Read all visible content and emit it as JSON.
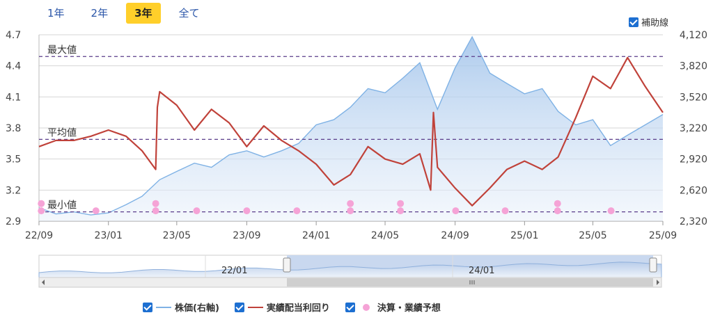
{
  "tabs": [
    {
      "label": "1年",
      "active": false
    },
    {
      "label": "2年",
      "active": false
    },
    {
      "label": "3年",
      "active": true
    },
    {
      "label": "全て",
      "active": false
    }
  ],
  "guide_toggle_label": "補助線",
  "navigator_labels": [
    "22/01",
    "24/01"
  ],
  "colors": {
    "price": "#7fb2e5",
    "yield": "#c0423a",
    "event": "#f5a3d6",
    "guide": "#5a3c8a"
  },
  "chart_data": {
    "type": "line",
    "x_ticks": [
      "22/09",
      "23/01",
      "23/05",
      "23/09",
      "24/01",
      "24/05",
      "24/09",
      "25/01",
      "25/05",
      "25/09"
    ],
    "y_left": {
      "ticks": [
        "2.9",
        "3.2",
        "3.5",
        "3.8",
        "4.1",
        "4.4",
        "4.7"
      ],
      "range": [
        2.9,
        4.7
      ]
    },
    "y_right": {
      "ticks": [
        "2,320",
        "2,620",
        "2,920",
        "3,220",
        "3,520",
        "3,820",
        "4,120"
      ],
      "range": [
        2320,
        4120
      ]
    },
    "guides": [
      {
        "label": "最大値",
        "value": 4.49
      },
      {
        "label": "平均値",
        "value": 3.69
      },
      {
        "label": "最小値",
        "value": 2.99
      }
    ],
    "series": [
      {
        "name": "株価(右軸)",
        "axis": "right",
        "points": [
          [
            "2022-09-01",
            2450
          ],
          [
            "2022-10-01",
            2390
          ],
          [
            "2022-11-01",
            2410
          ],
          [
            "2022-12-01",
            2380
          ],
          [
            "2023-01-01",
            2400
          ],
          [
            "2023-02-01",
            2480
          ],
          [
            "2023-03-01",
            2560
          ],
          [
            "2023-04-01",
            2720
          ],
          [
            "2023-05-01",
            2800
          ],
          [
            "2023-06-01",
            2880
          ],
          [
            "2023-07-01",
            2840
          ],
          [
            "2023-08-01",
            2960
          ],
          [
            "2023-09-01",
            3000
          ],
          [
            "2023-10-01",
            2940
          ],
          [
            "2023-11-01",
            3000
          ],
          [
            "2023-12-01",
            3070
          ],
          [
            "2024-01-01",
            3250
          ],
          [
            "2024-02-01",
            3300
          ],
          [
            "2024-03-01",
            3420
          ],
          [
            "2024-04-01",
            3600
          ],
          [
            "2024-05-01",
            3560
          ],
          [
            "2024-06-01",
            3700
          ],
          [
            "2024-07-01",
            3850
          ],
          [
            "2024-08-01",
            3400
          ],
          [
            "2024-09-01",
            3800
          ],
          [
            "2024-10-01",
            4100
          ],
          [
            "2024-11-01",
            3750
          ],
          [
            "2024-12-01",
            3650
          ],
          [
            "2025-01-01",
            3550
          ],
          [
            "2025-02-01",
            3600
          ],
          [
            "2025-03-01",
            3380
          ],
          [
            "2025-04-01",
            3250
          ],
          [
            "2025-05-01",
            3300
          ],
          [
            "2025-06-01",
            3050
          ],
          [
            "2025-07-01",
            3150
          ],
          [
            "2025-08-01",
            3250
          ],
          [
            "2025-09-01",
            3350
          ]
        ]
      },
      {
        "name": "実績配当利回り",
        "axis": "left",
        "points": [
          [
            "2022-09-01",
            3.62
          ],
          [
            "2022-10-01",
            3.68
          ],
          [
            "2022-11-01",
            3.68
          ],
          [
            "2022-12-01",
            3.72
          ],
          [
            "2023-01-01",
            3.78
          ],
          [
            "2023-02-01",
            3.72
          ],
          [
            "2023-03-01",
            3.58
          ],
          [
            "2023-03-25",
            3.4
          ],
          [
            "2023-03-28",
            4.0
          ],
          [
            "2023-04-01",
            4.15
          ],
          [
            "2023-05-01",
            4.02
          ],
          [
            "2023-06-01",
            3.78
          ],
          [
            "2023-07-01",
            3.98
          ],
          [
            "2023-08-01",
            3.85
          ],
          [
            "2023-09-01",
            3.62
          ],
          [
            "2023-10-01",
            3.82
          ],
          [
            "2023-11-01",
            3.68
          ],
          [
            "2023-12-01",
            3.58
          ],
          [
            "2024-01-01",
            3.45
          ],
          [
            "2024-02-01",
            3.25
          ],
          [
            "2024-03-01",
            3.35
          ],
          [
            "2024-04-01",
            3.62
          ],
          [
            "2024-05-01",
            3.5
          ],
          [
            "2024-06-01",
            3.45
          ],
          [
            "2024-07-01",
            3.55
          ],
          [
            "2024-07-20",
            3.2
          ],
          [
            "2024-07-25",
            3.95
          ],
          [
            "2024-08-01",
            3.42
          ],
          [
            "2024-09-01",
            3.22
          ],
          [
            "2024-10-01",
            3.05
          ],
          [
            "2024-11-01",
            3.22
          ],
          [
            "2024-12-01",
            3.4
          ],
          [
            "2025-01-01",
            3.48
          ],
          [
            "2025-02-01",
            3.4
          ],
          [
            "2025-03-01",
            3.52
          ],
          [
            "2025-04-01",
            3.9
          ],
          [
            "2025-05-01",
            4.3
          ],
          [
            "2025-06-01",
            4.18
          ],
          [
            "2025-07-01",
            4.48
          ],
          [
            "2025-08-01",
            4.2
          ],
          [
            "2025-09-01",
            3.95
          ]
        ]
      }
    ],
    "events": {
      "name": "決算・業績予想",
      "points": [
        [
          "2022-09-05",
          3.0
        ],
        [
          "2022-09-05",
          3.07
        ],
        [
          "2022-12-10",
          3.0
        ],
        [
          "2023-03-25",
          3.0
        ],
        [
          "2023-03-25",
          3.07
        ],
        [
          "2023-06-05",
          3.0
        ],
        [
          "2023-09-01",
          3.0
        ],
        [
          "2023-11-28",
          3.0
        ],
        [
          "2024-03-01",
          3.0
        ],
        [
          "2024-03-01",
          3.07
        ],
        [
          "2024-05-28",
          3.0
        ],
        [
          "2024-05-28",
          3.07
        ],
        [
          "2024-09-02",
          3.0
        ],
        [
          "2024-11-28",
          3.0
        ],
        [
          "2025-02-28",
          3.0
        ],
        [
          "2025-02-28",
          3.07
        ],
        [
          "2025-06-02",
          3.0
        ]
      ]
    },
    "legend": [
      {
        "label": "株価(右軸)",
        "kind": "line",
        "color": "#7fb2e5"
      },
      {
        "label": "実績配当利回り",
        "kind": "line",
        "color": "#c0423a"
      },
      {
        "label": "決算・業績予想",
        "kind": "dot",
        "color": "#f5a3d6"
      }
    ]
  }
}
